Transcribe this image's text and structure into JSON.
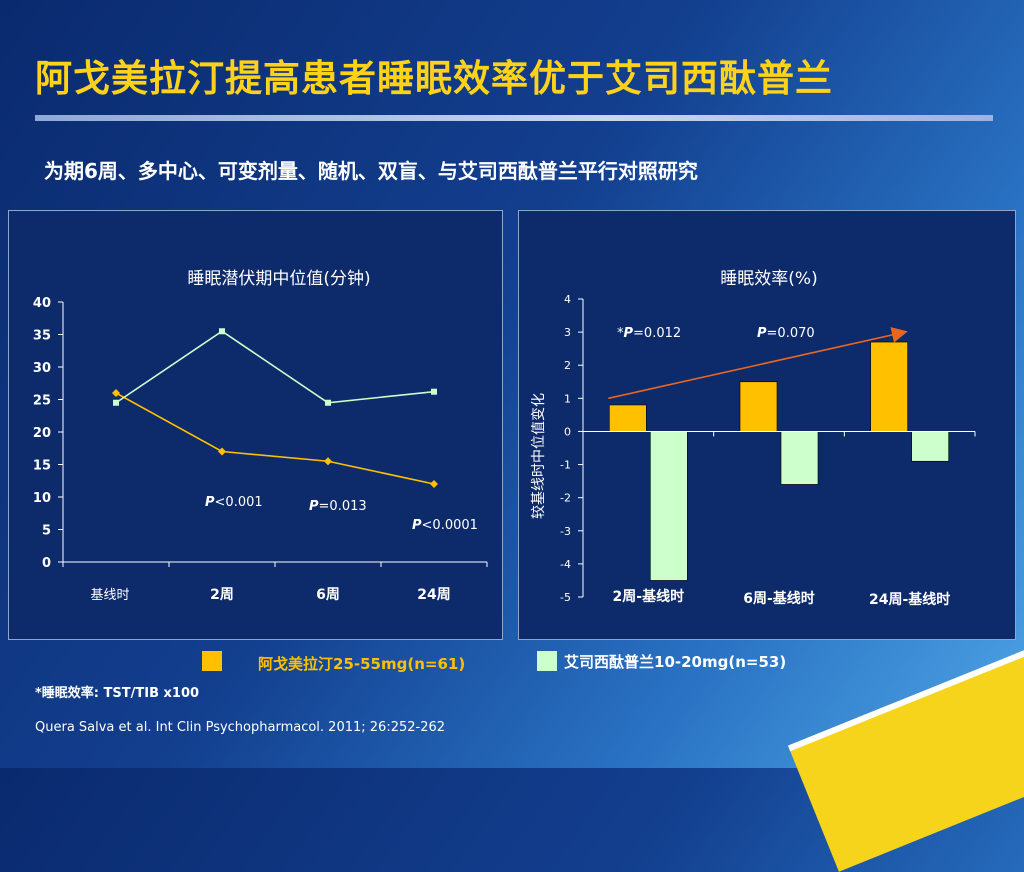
{
  "slide": {
    "title": "阿戈美拉汀提高患者睡眠效率优于艾司西酞普兰",
    "subtitle": "为期6周、多中心、可变剂量、随机、双盲、与艾司西酞普兰平行对照研究"
  },
  "colors": {
    "agomelatine": "#ffc000",
    "escitalopram": "#ccffcc",
    "title": "#ffd21a",
    "arrow": "#e8661f"
  },
  "chart_data": [
    {
      "type": "line",
      "title": "睡眠潜伏期中位值(分钟)",
      "categories": [
        "基线时",
        "2周",
        "6周",
        "24周"
      ],
      "ylim": [
        0,
        40
      ],
      "yticks": [
        0,
        5,
        10,
        15,
        20,
        25,
        30,
        35,
        40
      ],
      "series": [
        {
          "key": "agomelatine",
          "values": [
            26,
            17,
            15.5,
            12
          ]
        },
        {
          "key": "escitalopram",
          "values": [
            24.5,
            35.5,
            24.5,
            26.2
          ]
        }
      ],
      "annotations": [
        {
          "p_label": "P",
          "text": "<0.001"
        },
        {
          "p_label": "P",
          "text": "=0.013"
        },
        {
          "p_label": "P",
          "text": "<0.0001"
        }
      ]
    },
    {
      "type": "bar",
      "title": "睡眠效率(%)",
      "ylabel": "较基线时中位值变化",
      "categories": [
        "2周-基线时",
        "6周-基线时",
        "24周-基线时"
      ],
      "ylim": [
        -5,
        4
      ],
      "yticks": [
        4,
        3,
        2,
        1,
        0,
        -1,
        -2,
        -3,
        -4,
        -5
      ],
      "series": [
        {
          "key": "agomelatine",
          "values": [
            0.8,
            1.5,
            2.7
          ]
        },
        {
          "key": "escitalopram",
          "values": [
            -4.5,
            -1.6,
            -0.9
          ]
        }
      ],
      "annotations": [
        {
          "prefix": "*",
          "p_label": "P",
          "text": "=0.012"
        },
        {
          "prefix": "",
          "p_label": "P",
          "text": "=0.070"
        }
      ]
    }
  ],
  "legend": [
    {
      "label": "阿戈美拉汀25-55mg(n=61)"
    },
    {
      "label": "艾司西酞普兰10-20mg(n=53)"
    }
  ],
  "footnotes": {
    "definition": "*睡眠效率: TST/TIB x100",
    "citation": "Quera Salva  et al. Int Clin Psychopharmacol. 2011; 26:252-262"
  }
}
